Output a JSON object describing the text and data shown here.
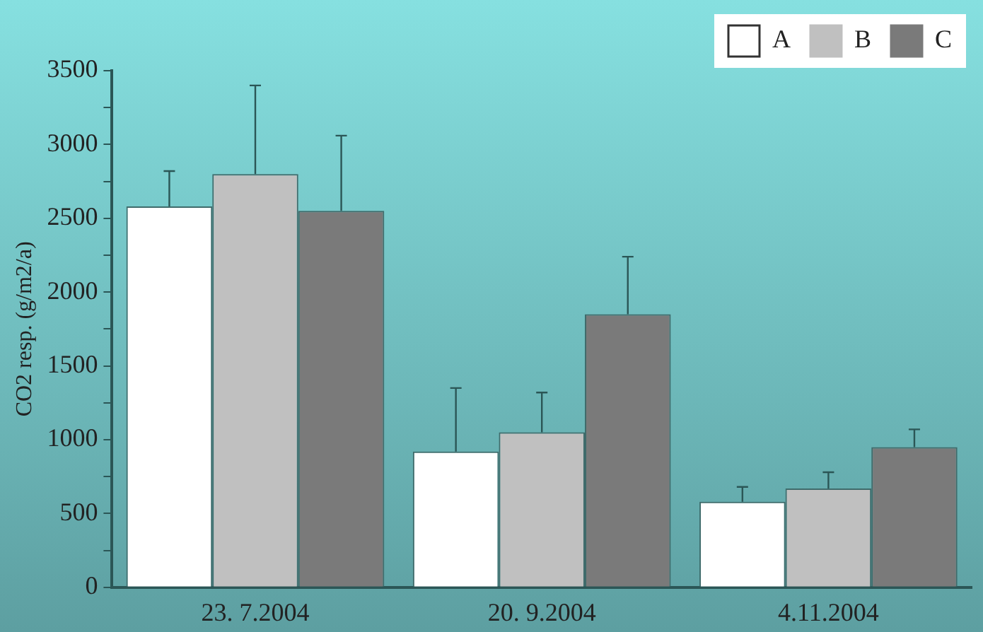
{
  "chart_data": {
    "type": "bar",
    "ylabel": "CO2 resp. (g/m2/a)",
    "categories": [
      "23. 7.2004",
      "20. 9.2004",
      "4.11.2004"
    ],
    "series": [
      {
        "name": "A",
        "color": "#ffffff",
        "values": [
          2580,
          920,
          580
        ],
        "errors": [
          [
            2580,
            2820
          ],
          [
            920,
            1350
          ],
          [
            580,
            680
          ]
        ]
      },
      {
        "name": "B",
        "color": "#c0c0c0",
        "values": [
          2800,
          1050,
          670
        ],
        "errors": [
          [
            2800,
            3400
          ],
          [
            1050,
            1320
          ],
          [
            670,
            780
          ]
        ]
      },
      {
        "name": "C",
        "color": "#7a7a7a",
        "values": [
          2550,
          1850,
          950
        ],
        "errors": [
          [
            2550,
            3060
          ],
          [
            1850,
            2240
          ],
          [
            950,
            1070
          ]
        ]
      }
    ],
    "ylim": [
      0,
      3500
    ],
    "yticks": [
      0,
      {
        "value": 250,
        "label": null
      },
      500,
      {
        "value": 750,
        "label": null
      },
      1000,
      {
        "value": 1250,
        "label": null
      },
      1500,
      {
        "value": 1750,
        "label": null
      },
      2000,
      {
        "value": 2250,
        "label": null
      },
      2500,
      {
        "value": 2750,
        "label": null
      },
      3000,
      {
        "value": 3250,
        "label": null
      },
      3500
    ],
    "grid": false,
    "legend": "top right"
  }
}
